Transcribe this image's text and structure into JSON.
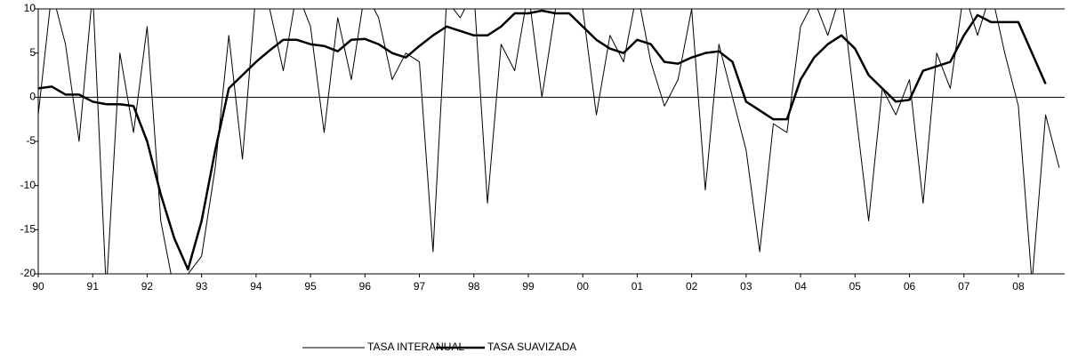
{
  "chart_data": {
    "type": "line",
    "x": [
      1990,
      1990.25,
      1990.5,
      1990.75,
      1991,
      1991.25,
      1991.5,
      1991.75,
      1992,
      1992.25,
      1992.5,
      1992.75,
      1993,
      1993.25,
      1993.5,
      1993.75,
      1994,
      1994.25,
      1994.5,
      1994.75,
      1995,
      1995.25,
      1995.5,
      1995.75,
      1996,
      1996.25,
      1996.5,
      1996.75,
      1997,
      1997.25,
      1997.5,
      1997.75,
      1998,
      1998.25,
      1998.5,
      1998.75,
      1999,
      1999.25,
      1999.5,
      1999.75,
      2000,
      2000.25,
      2000.5,
      2000.75,
      2001,
      2001.25,
      2001.5,
      2001.75,
      2002,
      2002.25,
      2002.5,
      2002.75,
      2003,
      2003.25,
      2003.5,
      2003.75,
      2004,
      2004.25,
      2004.5,
      2004.75,
      2005,
      2005.25,
      2005.5,
      2005.75,
      2006,
      2006.25,
      2006.5,
      2006.75,
      2007,
      2007.25,
      2007.5,
      2007.75,
      2008,
      2008.25,
      2008.5,
      2008.75
    ],
    "series": [
      {
        "name": "TASA INTERANUAL",
        "color": "#000000",
        "values": [
          -2,
          12,
          6,
          -5,
          12,
          -22,
          5,
          -4,
          8,
          -14,
          -22,
          -20,
          -18,
          -8,
          7,
          -7,
          12,
          10,
          3,
          12,
          8,
          -4,
          9,
          2,
          12,
          9,
          2,
          5,
          4,
          -17.5,
          11,
          9,
          12,
          -12,
          6,
          3,
          12,
          0,
          10,
          12,
          10,
          -2,
          7,
          4,
          12,
          4,
          -1,
          2,
          10,
          -10.5,
          6,
          0,
          -6,
          -17.5,
          -3,
          -4,
          8,
          11,
          7,
          12,
          -1,
          -14,
          1,
          -2,
          2,
          -12,
          5,
          1,
          12,
          7,
          12,
          5,
          -1,
          -21,
          -2,
          -8
        ]
      },
      {
        "name": "TASA SUAVIZADA",
        "color": "#000000",
        "values": [
          1,
          1.2,
          0.3,
          0.3,
          -0.5,
          -0.8,
          -0.8,
          -1,
          -5,
          -11,
          -16,
          -19.5,
          -14,
          -6,
          1,
          2.5,
          4,
          5.3,
          6.5,
          6.5,
          6,
          5.8,
          5.2,
          6.5,
          6.6,
          6,
          5,
          4.5,
          5.8,
          7,
          8,
          7.5,
          7,
          7,
          8,
          9.5,
          9.5,
          9.8,
          9.5,
          9.5,
          8,
          6.5,
          5.5,
          5,
          6.5,
          6,
          4,
          3.8,
          4.5,
          5,
          5.2,
          4,
          -0.5,
          -1.5,
          -2.5,
          -2.5,
          2,
          4.5,
          6,
          7,
          5.5,
          2.5,
          1,
          -0.5,
          -0.3,
          3,
          3.5,
          4,
          7,
          9.3,
          8.5,
          8.5,
          8.5,
          5,
          1.5,
          null
        ]
      }
    ],
    "xlim": [
      1990,
      2008.85
    ],
    "xticks": [
      {
        "value": 1990,
        "label": "90"
      },
      {
        "value": 1991,
        "label": "91"
      },
      {
        "value": 1992,
        "label": "92"
      },
      {
        "value": 1993,
        "label": "93"
      },
      {
        "value": 1994,
        "label": "94"
      },
      {
        "value": 1995,
        "label": "95"
      },
      {
        "value": 1996,
        "label": "96"
      },
      {
        "value": 1997,
        "label": "97"
      },
      {
        "value": 1998,
        "label": "98"
      },
      {
        "value": 1999,
        "label": "99"
      },
      {
        "value": 2000,
        "label": "00"
      },
      {
        "value": 2001,
        "label": "01"
      },
      {
        "value": 2002,
        "label": "02"
      },
      {
        "value": 2003,
        "label": "03"
      },
      {
        "value": 2004,
        "label": "04"
      },
      {
        "value": 2005,
        "label": "05"
      },
      {
        "value": 2006,
        "label": "06"
      },
      {
        "value": 2007,
        "label": "07"
      },
      {
        "value": 2008,
        "label": "08"
      }
    ],
    "ylim": [
      -20,
      10
    ],
    "yticks": [
      -20,
      -15,
      -10,
      -5,
      0,
      5,
      10
    ]
  }
}
